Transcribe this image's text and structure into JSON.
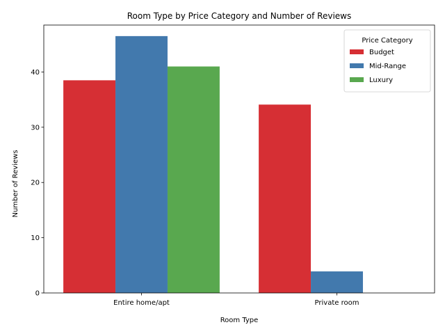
{
  "chart_data": {
    "type": "bar",
    "title": "Room Type by Price Category and Number of Reviews",
    "xlabel": "Room Type",
    "ylabel": "Number of Reviews",
    "categories": [
      "Entire home/apt",
      "Private room"
    ],
    "series": [
      {
        "name": "Budget",
        "color": "#d62f34",
        "values": [
          38.5,
          34.1
        ]
      },
      {
        "name": "Mid-Range",
        "color": "#4279ad",
        "values": [
          46.5,
          3.9
        ]
      },
      {
        "name": "Luxury",
        "color": "#59a84f",
        "values": [
          41.0,
          null
        ]
      }
    ],
    "ylim": [
      0,
      48.5
    ],
    "yticks": [
      0,
      10,
      20,
      30,
      40
    ],
    "legend": {
      "title": "Price Category",
      "placement": "top-right"
    },
    "grid": false
  }
}
